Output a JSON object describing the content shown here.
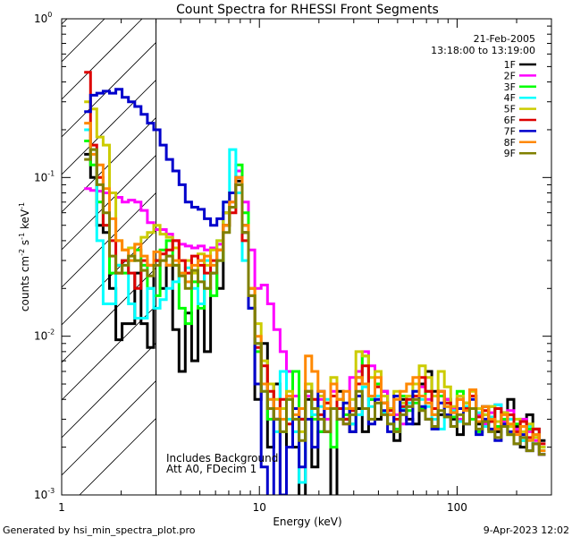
{
  "chart_data": {
    "type": "line",
    "title": "Count Spectra for RHESSI Front Segments",
    "xlabel": "Energy (keV)",
    "ylabel": "counts cm-2 s-1 keV-1",
    "ylabel_parts": {
      "base": "counts cm",
      "exp1": "-2",
      "mid": " s",
      "exp2": "-1",
      "end": " keV",
      "exp3": "-1"
    },
    "x_scale": "log",
    "y_scale": "log",
    "xlim": [
      1,
      300
    ],
    "ylim": [
      0.001,
      1
    ],
    "x_ticks": [
      {
        "value": 1,
        "label": "1"
      },
      {
        "value": 10,
        "label": "10"
      },
      {
        "value": 100,
        "label": "100"
      }
    ],
    "y_ticks": [
      {
        "value": 1,
        "base": "10",
        "exp": "0"
      },
      {
        "value": 0.1,
        "base": "10",
        "exp": "-1"
      },
      {
        "value": 0.01,
        "base": "10",
        "exp": "-2"
      },
      {
        "value": 0.001,
        "base": "10",
        "exp": "-3"
      }
    ],
    "hatched_region": {
      "x_from": 1,
      "x_to": 3
    },
    "date": "21-Feb-2005",
    "time_range": "13:18:00 to 13:19:00",
    "annotations": [
      "Includes Background",
      "Att A0, FDecim 1"
    ],
    "footer_left": "Generated by hsi_min_spectra_plot.pro",
    "footer_right": "9-Apr-2023 12:02",
    "series": [
      {
        "name": "1F",
        "color": "#000000",
        "values": [
          0.14,
          0.1,
          0.05,
          0.045,
          0.02,
          0.0095,
          0.012,
          0.012,
          0.025,
          0.012,
          0.0085,
          0.03,
          0.02,
          0.028,
          0.011,
          0.006,
          0.014,
          0.007,
          0.03,
          0.008,
          0.025,
          0.02,
          0.06,
          0.065,
          0.095,
          0.05,
          0.015,
          0.004,
          0.009,
          0.002,
          0.005,
          0.0007,
          0.006,
          0.002,
          0.0006,
          0.004,
          0.0015,
          0.0025,
          0.0035,
          0.0009,
          0.0045,
          0.003,
          0.0025,
          0.0035,
          0.0025,
          0.004,
          0.003,
          0.0045,
          0.0032,
          0.0022,
          0.004,
          0.003,
          0.0028,
          0.005,
          0.006,
          0.0045,
          0.0032,
          0.004,
          0.003,
          0.0024,
          0.0035,
          0.0042,
          0.0028,
          0.0036,
          0.003,
          0.0025,
          0.0033,
          0.004,
          0.0027,
          0.002,
          0.0032,
          0.0026,
          0.0022
        ]
      },
      {
        "name": "2F",
        "color": "#ff00ff",
        "values": [
          0.085,
          0.083,
          0.082,
          0.08,
          0.08,
          0.075,
          0.07,
          0.072,
          0.07,
          0.062,
          0.052,
          0.047,
          0.047,
          0.044,
          0.04,
          0.038,
          0.037,
          0.036,
          0.037,
          0.035,
          0.036,
          0.038,
          0.05,
          0.07,
          0.11,
          0.07,
          0.035,
          0.02,
          0.021,
          0.016,
          0.011,
          0.008,
          0.006,
          0.0042,
          0.003,
          0.0042,
          0.0035,
          0.004,
          0.003,
          0.0045,
          0.0035,
          0.0028,
          0.0055,
          0.006,
          0.008,
          0.0065,
          0.004,
          0.0045,
          0.0035,
          0.0032,
          0.0028,
          0.0036,
          0.004,
          0.0048,
          0.004,
          0.0035,
          0.0045,
          0.004,
          0.0035,
          0.003,
          0.0038,
          0.0042,
          0.0032,
          0.0028,
          0.0033,
          0.0037,
          0.0029,
          0.0034,
          0.0026,
          0.003,
          0.0025,
          0.0022,
          0.0018
        ]
      },
      {
        "name": "3F",
        "color": "#00ff00",
        "values": [
          0.17,
          0.12,
          0.07,
          0.05,
          0.025,
          0.028,
          0.025,
          0.03,
          0.035,
          0.028,
          0.02,
          0.018,
          0.035,
          0.04,
          0.028,
          0.015,
          0.012,
          0.022,
          0.015,
          0.02,
          0.018,
          0.03,
          0.05,
          0.08,
          0.12,
          0.06,
          0.02,
          0.008,
          0.005,
          0.003,
          0.0035,
          0.0025,
          0.004,
          0.006,
          0.003,
          0.005,
          0.003,
          0.0025,
          0.0035,
          0.002,
          0.004,
          0.0032,
          0.0028,
          0.0055,
          0.0075,
          0.004,
          0.005,
          0.0038,
          0.0032,
          0.0026,
          0.0042,
          0.0034,
          0.0038,
          0.0035,
          0.0045,
          0.0032,
          0.0042,
          0.0036,
          0.0031,
          0.0045,
          0.0038,
          0.003,
          0.0025,
          0.0032,
          0.0036,
          0.0027,
          0.003,
          0.0024,
          0.0028,
          0.0022,
          0.0026,
          0.0024,
          0.002
        ]
      },
      {
        "name": "4F",
        "color": "#00ffff",
        "values": [
          0.2,
          0.15,
          0.04,
          0.016,
          0.016,
          0.028,
          0.03,
          0.016,
          0.013,
          0.013,
          0.02,
          0.015,
          0.017,
          0.02,
          0.022,
          0.025,
          0.027,
          0.02,
          0.016,
          0.03,
          0.025,
          0.04,
          0.07,
          0.15,
          0.08,
          0.03,
          0.015,
          0.009,
          0.0045,
          0.004,
          0.0025,
          0.006,
          0.003,
          0.0025,
          0.0012,
          0.0045,
          0.0032,
          0.0036,
          0.004,
          0.005,
          0.004,
          0.0035,
          0.0028,
          0.0032,
          0.0048,
          0.0036,
          0.0042,
          0.0033,
          0.0028,
          0.0025,
          0.0035,
          0.0038,
          0.0045,
          0.004,
          0.0036,
          0.003,
          0.0026,
          0.0038,
          0.0034,
          0.0029,
          0.0036,
          0.0042,
          0.0033,
          0.0027,
          0.0031,
          0.0037,
          0.0028,
          0.003,
          0.0025,
          0.0022,
          0.0027,
          0.0021,
          0.0019
        ]
      },
      {
        "name": "5F",
        "color": "#cccc00",
        "values": [
          0.3,
          0.27,
          0.18,
          0.16,
          0.08,
          0.04,
          0.035,
          0.036,
          0.038,
          0.042,
          0.045,
          0.05,
          0.044,
          0.042,
          0.036,
          0.03,
          0.03,
          0.025,
          0.033,
          0.028,
          0.035,
          0.04,
          0.06,
          0.08,
          0.09,
          0.045,
          0.02,
          0.012,
          0.007,
          0.005,
          0.004,
          0.0035,
          0.0045,
          0.003,
          0.0025,
          0.005,
          0.004,
          0.0042,
          0.0038,
          0.0055,
          0.004,
          0.0035,
          0.004,
          0.008,
          0.0075,
          0.0055,
          0.006,
          0.0042,
          0.0035,
          0.0045,
          0.0038,
          0.0042,
          0.005,
          0.0065,
          0.0055,
          0.0042,
          0.006,
          0.0048,
          0.0036,
          0.0042,
          0.0038,
          0.0045,
          0.0035,
          0.0032,
          0.0036,
          0.0029,
          0.0033,
          0.0027,
          0.003,
          0.0025,
          0.0028,
          0.0023,
          0.002
        ]
      },
      {
        "name": "6F",
        "color": "#dd0000",
        "values": [
          0.46,
          0.16,
          0.1,
          0.05,
          0.04,
          0.025,
          0.03,
          0.025,
          0.02,
          0.03,
          0.028,
          0.03,
          0.033,
          0.035,
          0.04,
          0.03,
          0.025,
          0.032,
          0.028,
          0.025,
          0.03,
          0.035,
          0.05,
          0.06,
          0.09,
          0.04,
          0.018,
          0.0085,
          0.0065,
          0.0045,
          0.003,
          0.004,
          0.0028,
          0.0035,
          0.003,
          0.0045,
          0.004,
          0.0032,
          0.0038,
          0.0042,
          0.0035,
          0.003,
          0.0034,
          0.005,
          0.0065,
          0.0042,
          0.0048,
          0.0038,
          0.0034,
          0.003,
          0.0036,
          0.004,
          0.0042,
          0.0055,
          0.0045,
          0.0035,
          0.0045,
          0.0038,
          0.0033,
          0.004,
          0.0035,
          0.0042,
          0.0031,
          0.0034,
          0.0029,
          0.0035,
          0.0027,
          0.0032,
          0.0025,
          0.0029,
          0.0023,
          0.0026,
          0.0021
        ]
      },
      {
        "name": "7F",
        "color": "#0000cc",
        "values": [
          0.26,
          0.33,
          0.34,
          0.35,
          0.34,
          0.36,
          0.32,
          0.3,
          0.28,
          0.25,
          0.22,
          0.2,
          0.16,
          0.13,
          0.11,
          0.09,
          0.07,
          0.065,
          0.063,
          0.055,
          0.05,
          0.055,
          0.07,
          0.08,
          0.1,
          0.045,
          0.015,
          0.005,
          0.0015,
          0.0008,
          0.003,
          0.001,
          0.002,
          0.0035,
          0.0015,
          0.003,
          0.002,
          0.0045,
          0.0025,
          0.0035,
          0.003,
          0.0038,
          0.0025,
          0.0042,
          0.0035,
          0.0028,
          0.004,
          0.0034,
          0.0025,
          0.0042,
          0.0034,
          0.0028,
          0.0045,
          0.0036,
          0.003,
          0.0026,
          0.0038,
          0.0032,
          0.0027,
          0.0035,
          0.0028,
          0.004,
          0.0024,
          0.003,
          0.0026,
          0.0022,
          0.0028,
          0.0025,
          0.0021,
          0.0024,
          0.0019,
          0.0021,
          0.0018
        ]
      },
      {
        "name": "8F",
        "color": "#ff8800",
        "values": [
          0.22,
          0.14,
          0.12,
          0.085,
          0.055,
          0.04,
          0.035,
          0.03,
          0.038,
          0.032,
          0.028,
          0.034,
          0.03,
          0.028,
          0.03,
          0.025,
          0.022,
          0.028,
          0.03,
          0.032,
          0.028,
          0.035,
          0.05,
          0.07,
          0.1,
          0.05,
          0.02,
          0.01,
          0.005,
          0.004,
          0.0035,
          0.003,
          0.0042,
          0.0032,
          0.0035,
          0.0075,
          0.006,
          0.0045,
          0.0035,
          0.005,
          0.004,
          0.0045,
          0.0035,
          0.0055,
          0.005,
          0.0042,
          0.0055,
          0.0038,
          0.0032,
          0.004,
          0.0045,
          0.005,
          0.0055,
          0.0042,
          0.0038,
          0.0032,
          0.0045,
          0.0036,
          0.0033,
          0.004,
          0.0034,
          0.0046,
          0.0029,
          0.0036,
          0.003,
          0.0026,
          0.0032,
          0.0028,
          0.0024,
          0.0027,
          0.0022,
          0.0024,
          0.0019
        ]
      },
      {
        "name": "9F",
        "color": "#808000",
        "values": [
          0.13,
          0.15,
          0.09,
          0.06,
          0.032,
          0.025,
          0.028,
          0.032,
          0.03,
          0.026,
          0.024,
          0.028,
          0.03,
          0.032,
          0.028,
          0.024,
          0.02,
          0.026,
          0.022,
          0.02,
          0.025,
          0.03,
          0.045,
          0.065,
          0.09,
          0.045,
          0.018,
          0.009,
          0.0045,
          0.0035,
          0.003,
          0.0025,
          0.004,
          0.003,
          0.0022,
          0.0045,
          0.0035,
          0.003,
          0.0025,
          0.0035,
          0.003,
          0.0028,
          0.0032,
          0.0045,
          0.0035,
          0.003,
          0.0038,
          0.0032,
          0.0028,
          0.0025,
          0.0032,
          0.0036,
          0.004,
          0.0034,
          0.003,
          0.0027,
          0.0034,
          0.0031,
          0.0027,
          0.0032,
          0.0028,
          0.0035,
          0.0026,
          0.0029,
          0.0025,
          0.0023,
          0.0027,
          0.0024,
          0.0021,
          0.0023,
          0.0019,
          0.0021,
          0.0018
        ]
      }
    ]
  }
}
